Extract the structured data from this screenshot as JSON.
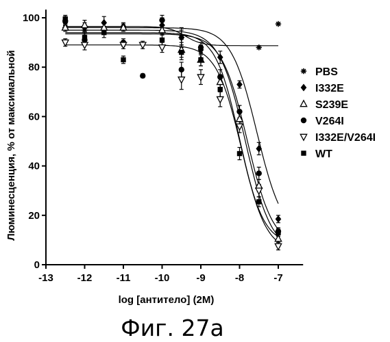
{
  "chart_data": {
    "type": "scatter",
    "ylabel": "Люминесценция, % от максимальной",
    "xlabel": "log [антитело] (2М)",
    "xlim": [
      -13,
      -6.5
    ],
    "ylim": [
      0,
      100
    ],
    "x_ticks": [
      -13,
      -12,
      -11,
      -10,
      -9,
      -8,
      -7
    ],
    "y_ticks": [
      0,
      20,
      40,
      60,
      80,
      100
    ],
    "legend_position": "right",
    "caption": "Фиг. 27а",
    "series": [
      {
        "name": "PBS",
        "marker": "asterisk",
        "curve": {
          "top": 96.5,
          "bottom": 88.7,
          "logEC50": -9.4,
          "hill": 2.0
        },
        "points": [
          {
            "x": -12.5,
            "y": 96.0,
            "err": 1.0
          },
          {
            "x": -12.0,
            "y": 95.0,
            "err": 1.0
          },
          {
            "x": -9.5,
            "y": 92.0,
            "err": 4.0
          },
          {
            "x": -7.5,
            "y": 88.0,
            "err": 0
          },
          {
            "x": -7.0,
            "y": 97.5,
            "err": 0
          }
        ]
      },
      {
        "name": "I332E",
        "marker": "diamond",
        "curve": {
          "top": 96.0,
          "bottom": 11.0,
          "logEC50": -7.55,
          "hill": 1.3
        },
        "points": [
          {
            "x": -12.5,
            "y": 99.0,
            "err": 1.5
          },
          {
            "x": -12.0,
            "y": 96.0,
            "err": 2.0
          },
          {
            "x": -11.5,
            "y": 98.0,
            "err": 2.5
          },
          {
            "x": -11.0,
            "y": 96.5,
            "err": 1.5
          },
          {
            "x": -10.0,
            "y": 97.0,
            "err": 3.0
          },
          {
            "x": -9.5,
            "y": 92.0,
            "err": 3.0
          },
          {
            "x": -9.0,
            "y": 87.0,
            "err": 2.0
          },
          {
            "x": -8.5,
            "y": 84.0,
            "err": 2.5
          },
          {
            "x": -8.0,
            "y": 73.0,
            "err": 1.5
          },
          {
            "x": -7.5,
            "y": 47.0,
            "err": 2.5
          },
          {
            "x": -7.0,
            "y": 18.5,
            "err": 1.5
          }
        ]
      },
      {
        "name": "S239E",
        "marker": "triangle-up",
        "curve": {
          "top": 95.0,
          "bottom": 5.0,
          "logEC50": -7.85,
          "hill": 1.3
        },
        "points": [
          {
            "x": -12.5,
            "y": 96.0,
            "err": 1.5
          },
          {
            "x": -12.0,
            "y": 97.0,
            "err": 2.0
          },
          {
            "x": -11.5,
            "y": 96.0,
            "err": 2.0
          },
          {
            "x": -11.0,
            "y": 96.0,
            "err": 1.5
          },
          {
            "x": -10.0,
            "y": 95.0,
            "err": 2.0
          },
          {
            "x": -9.5,
            "y": 87.0,
            "err": 3.0
          },
          {
            "x": -9.0,
            "y": 83.0,
            "err": 2.5
          },
          {
            "x": -8.5,
            "y": 74.0,
            "err": 3.0
          },
          {
            "x": -8.0,
            "y": 59.0,
            "err": 2.5
          },
          {
            "x": -7.5,
            "y": 32.0,
            "err": 2.5
          },
          {
            "x": -7.0,
            "y": 10.5,
            "err": 1.5
          }
        ]
      },
      {
        "name": "V264I",
        "marker": "circle",
        "curve": {
          "top": 93.5,
          "bottom": 7.0,
          "logEC50": -7.8,
          "hill": 1.3
        },
        "points": [
          {
            "x": -12.5,
            "y": 98.5,
            "err": 1.5
          },
          {
            "x": -12.0,
            "y": 91.0,
            "err": 2.0
          },
          {
            "x": -11.0,
            "y": 90.0,
            "err": 1.5
          },
          {
            "x": -10.5,
            "y": 76.5,
            "err": 0.8
          },
          {
            "x": -10.0,
            "y": 99.0,
            "err": 2.0
          },
          {
            "x": -9.5,
            "y": 79.0,
            "err": 3.0
          },
          {
            "x": -9.0,
            "y": 88.0,
            "err": 2.0
          },
          {
            "x": -8.5,
            "y": 76.0,
            "err": 3.0
          },
          {
            "x": -8.0,
            "y": 62.0,
            "err": 2.5
          },
          {
            "x": -7.5,
            "y": 37.0,
            "err": 2.5
          },
          {
            "x": -7.0,
            "y": 13.5,
            "err": 1.5
          }
        ]
      },
      {
        "name": "I332E/V264I",
        "marker": "triangle-down",
        "curve": {
          "top": 89.0,
          "bottom": 5.0,
          "logEC50": -7.95,
          "hill": 1.35
        },
        "points": [
          {
            "x": -12.5,
            "y": 90.0,
            "err": 1.5
          },
          {
            "x": -12.0,
            "y": 89.0,
            "err": 2.0
          },
          {
            "x": -11.0,
            "y": 89.0,
            "err": 1.5
          },
          {
            "x": -10.5,
            "y": 89.0,
            "err": 1.5
          },
          {
            "x": -10.0,
            "y": 88.0,
            "err": 2.0
          },
          {
            "x": -9.5,
            "y": 75.0,
            "err": 4.0
          },
          {
            "x": -9.0,
            "y": 76.0,
            "err": 3.0
          },
          {
            "x": -8.5,
            "y": 67.0,
            "err": 3.0
          },
          {
            "x": -8.0,
            "y": 56.0,
            "err": 2.5
          },
          {
            "x": -7.5,
            "y": 30.0,
            "err": 2.5
          },
          {
            "x": -7.0,
            "y": 7.5,
            "err": 1.5
          }
        ]
      },
      {
        "name": "WT",
        "marker": "square",
        "curve": {
          "top": 94.0,
          "bottom": 8.0,
          "logEC50": -8.0,
          "hill": 1.4
        },
        "points": [
          {
            "x": -12.5,
            "y": 99.5,
            "err": 1.5
          },
          {
            "x": -12.0,
            "y": 92.0,
            "err": 2.0
          },
          {
            "x": -11.5,
            "y": 94.0,
            "err": 2.0
          },
          {
            "x": -11.0,
            "y": 83.0,
            "err": 1.5
          },
          {
            "x": -10.0,
            "y": 91.0,
            "err": 2.5
          },
          {
            "x": -9.5,
            "y": 86.0,
            "err": 3.0
          },
          {
            "x": -9.0,
            "y": 83.0,
            "err": 2.5
          },
          {
            "x": -8.5,
            "y": 71.0,
            "err": 3.0
          },
          {
            "x": -8.0,
            "y": 45.0,
            "err": 2.5
          },
          {
            "x": -7.5,
            "y": 25.5,
            "err": 2.0
          },
          {
            "x": -7.0,
            "y": 13.0,
            "err": 1.5
          }
        ]
      }
    ]
  }
}
